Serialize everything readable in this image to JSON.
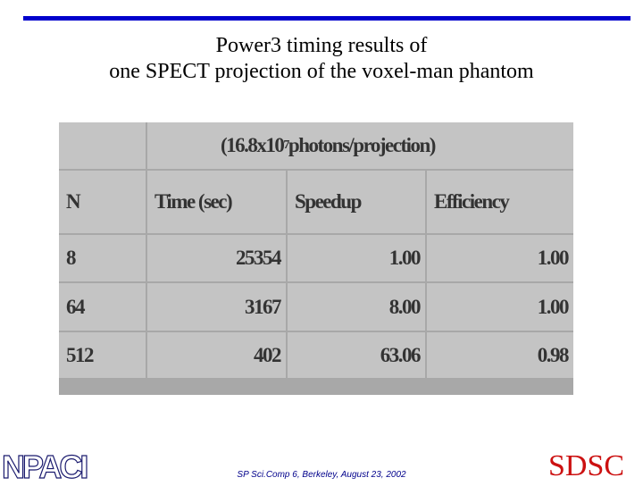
{
  "title": {
    "line1": "Power3 timing results of",
    "line2": "one SPECT projection of the voxel-man phantom"
  },
  "table": {
    "caption": {
      "before": "(16.8x10",
      "sup": "7",
      "after": " photons/projection)"
    },
    "columns": [
      "N",
      "Time (sec)",
      "Speedup",
      "Efficiency"
    ],
    "rows": [
      [
        "8",
        "25354",
        "1.00",
        "1.00"
      ],
      [
        "64",
        "3167",
        "8.00",
        "1.00"
      ],
      [
        "512",
        "402",
        "63.06",
        "0.98"
      ]
    ]
  },
  "footer": {
    "text": "SP Sci.Comp 6, Berkeley, August 23, 2002",
    "logo_left": "NPACI",
    "logo_right": "SDSC"
  }
}
